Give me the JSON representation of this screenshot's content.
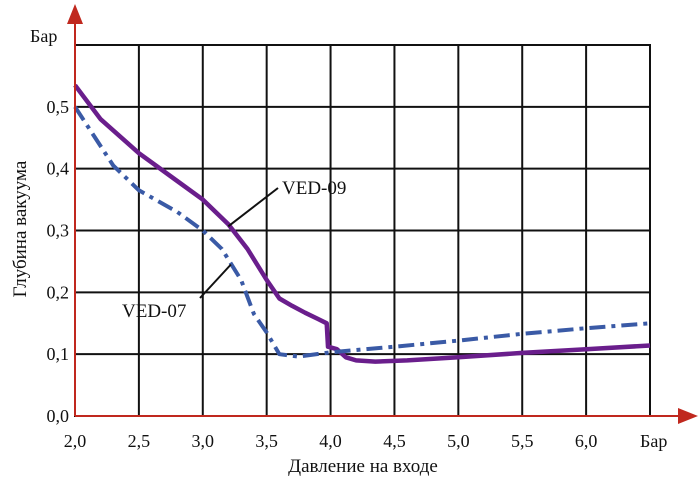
{
  "chart_data": {
    "type": "line",
    "xlabel": "Давление на входе",
    "ylabel": "Глубина вакуума",
    "x_unit": "Бар",
    "y_unit": "Бар",
    "xlim": [
      2.0,
      6.5
    ],
    "ylim": [
      0.0,
      0.6
    ],
    "x_ticks": [
      "2,0",
      "2,5",
      "3,0",
      "3,5",
      "4,0",
      "4,5",
      "5,0",
      "5,5",
      "6,0"
    ],
    "y_ticks": [
      "0,0",
      "0,1",
      "0,2",
      "0,3",
      "0,4",
      "0,5"
    ],
    "grid": true,
    "series": [
      {
        "name": "VED-09",
        "color": "#6a1e8c",
        "style": "solid",
        "x": [
          2.0,
          2.2,
          2.5,
          2.8,
          3.0,
          3.2,
          3.35,
          3.5,
          3.6,
          3.7,
          3.8,
          3.9,
          3.97,
          3.98,
          4.05,
          4.12,
          4.2,
          4.35,
          4.6,
          5.0,
          5.5,
          6.0,
          6.5
        ],
        "y": [
          0.535,
          0.48,
          0.425,
          0.38,
          0.35,
          0.31,
          0.27,
          0.22,
          0.19,
          0.178,
          0.167,
          0.157,
          0.15,
          0.112,
          0.108,
          0.095,
          0.09,
          0.088,
          0.09,
          0.095,
          0.102,
          0.108,
          0.114
        ]
      },
      {
        "name": "VED-07",
        "color": "#3a5aa6",
        "style": "dashdot",
        "x": [
          2.0,
          2.3,
          2.5,
          2.8,
          3.0,
          3.15,
          3.3,
          3.4,
          3.5,
          3.6,
          3.75,
          4.0,
          4.5,
          5.0,
          5.5,
          6.0,
          6.5
        ],
        "y": [
          0.5,
          0.405,
          0.365,
          0.33,
          0.3,
          0.27,
          0.22,
          0.165,
          0.135,
          0.1,
          0.096,
          0.103,
          0.112,
          0.122,
          0.133,
          0.142,
          0.15
        ]
      }
    ],
    "annotations": [
      {
        "text": "VED-09",
        "series": "VED-09"
      },
      {
        "text": "VED-07",
        "series": "VED-07"
      }
    ]
  }
}
